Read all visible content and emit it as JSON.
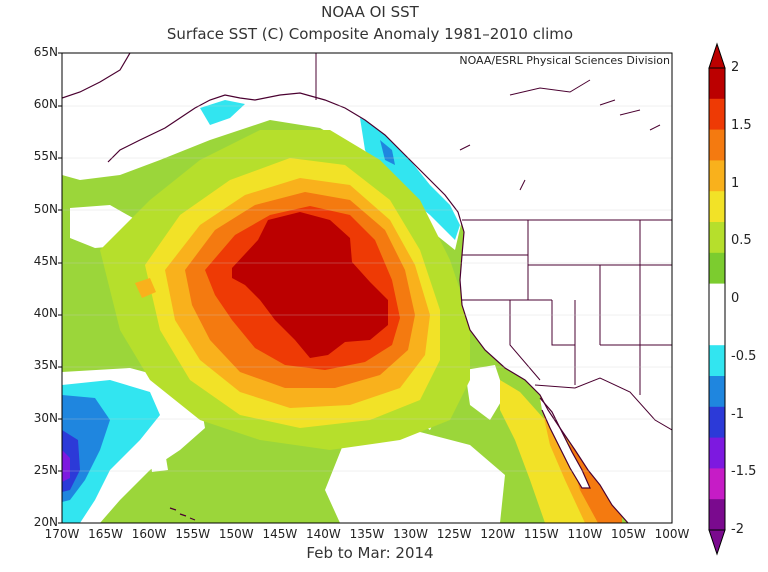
{
  "title_line1": "NOAA OI SST",
  "title_line2": "Surface SST (C) Composite Anomaly 1981–2010 climo",
  "credit": "NOAA/ESRL Physical Sciences Division",
  "period": "Feb to Mar: 2014",
  "lat_labels": [
    "65N",
    "60N",
    "55N",
    "50N",
    "45N",
    "40N",
    "35N",
    "30N",
    "25N",
    "20N"
  ],
  "lon_labels": [
    "170W",
    "165W",
    "160W",
    "155W",
    "150W",
    "145W",
    "140W",
    "135W",
    "130W",
    "125W",
    "120W",
    "115W",
    "110W",
    "105W",
    "100W"
  ],
  "colorbar": {
    "labels": [
      "2",
      "1.5",
      "1",
      "0.5",
      "0",
      "-0.5",
      "-1",
      "-1.5",
      "-2"
    ],
    "colors": [
      "#bb0000",
      "#ee3a05",
      "#f47a10",
      "#f9b11c",
      "#f2e227",
      "#b6df2c",
      "#7ccc2f",
      "#ffffff",
      "#ffffff",
      "#32e5f0",
      "#1f86df",
      "#2c3ad8",
      "#7d19e0",
      "#c61cc6",
      "#7a0a8e"
    ]
  }
}
